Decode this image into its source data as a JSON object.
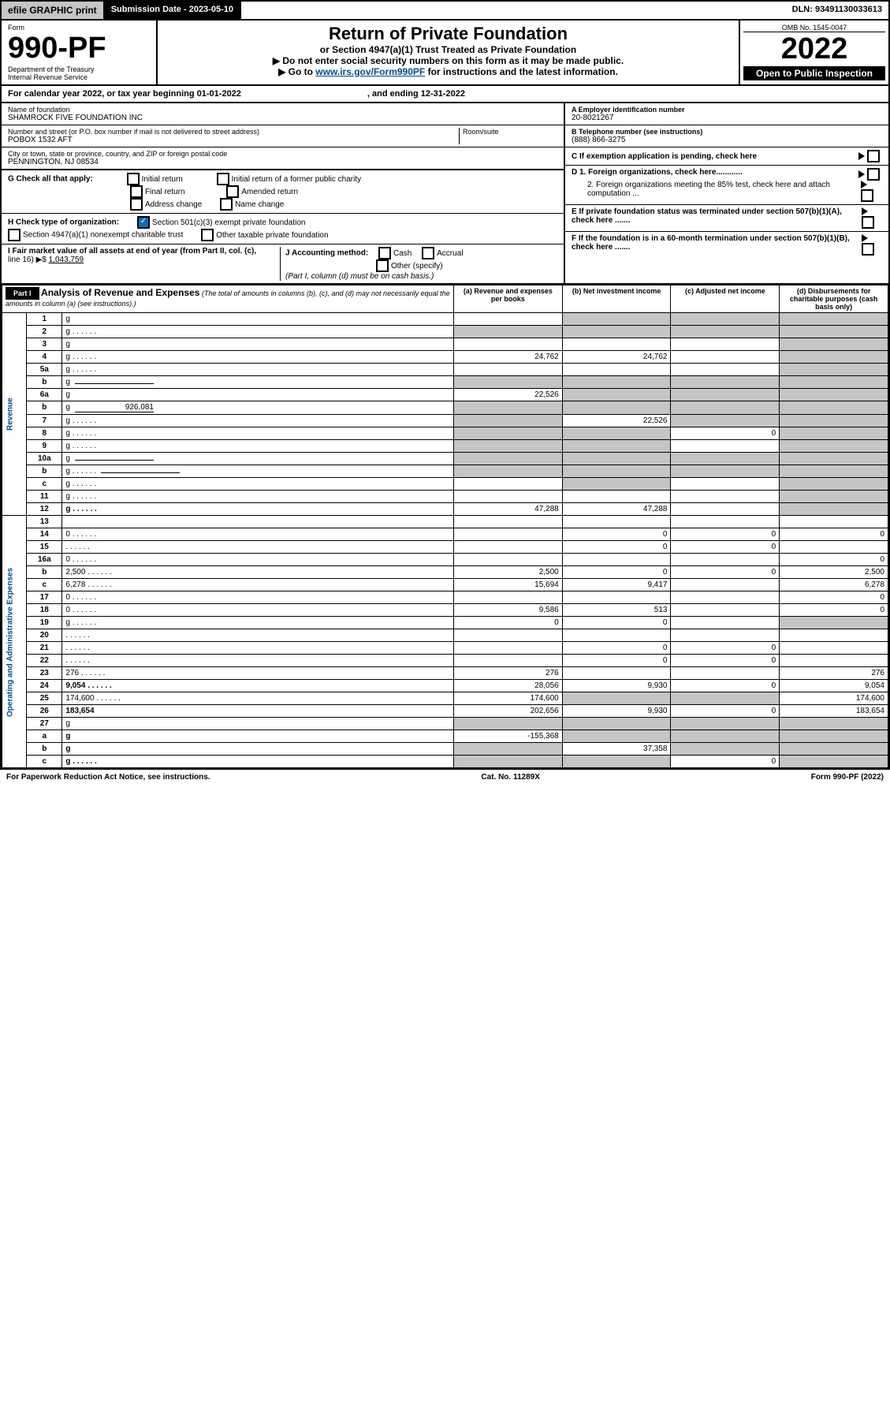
{
  "topbar": {
    "efile": "efile GRAPHIC print",
    "subdate_label": "Submission Date - 2023-05-10",
    "dln": "DLN: 93491130033613"
  },
  "header": {
    "form_label": "Form",
    "form_no": "990-PF",
    "dept": "Department of the Treasury",
    "irs": "Internal Revenue Service",
    "title": "Return of Private Foundation",
    "subtitle": "or Section 4947(a)(1) Trust Treated as Private Foundation",
    "note1": "▶ Do not enter social security numbers on this form as it may be made public.",
    "note2_a": "▶ Go to ",
    "note2_link": "www.irs.gov/Form990PF",
    "note2_b": " for instructions and the latest information.",
    "omb": "OMB No. 1545-0047",
    "year": "2022",
    "open": "Open to Public Inspection"
  },
  "cal": {
    "text_a": "For calendar year 2022, or tax year beginning 01-01-2022",
    "text_b": ", and ending 12-31-2022"
  },
  "info": {
    "name_label": "Name of foundation",
    "name": "SHAMROCK FIVE FOUNDATION INC",
    "addr_label": "Number and street (or P.O. box number if mail is not delivered to street address)",
    "room": "Room/suite",
    "addr": "POBOX 1532 AFT",
    "city_label": "City or town, state or province, country, and ZIP or foreign postal code",
    "city": "PENNINGTON, NJ  08534",
    "ein_label": "A Employer identification number",
    "ein": "20-8021267",
    "tel_label": "B Telephone number (see instructions)",
    "tel": "(888) 866-3275",
    "c_label": "C If exemption application is pending, check here",
    "d1": "D 1. Foreign organizations, check here............",
    "d2": "2. Foreign organizations meeting the 85% test, check here and attach computation ...",
    "e": "E If private foundation status was terminated under section 507(b)(1)(A), check here .......",
    "f": "F If the foundation is in a 60-month termination under section 507(b)(1)(B), check here ......."
  },
  "checks": {
    "g_label": "G Check all that apply:",
    "g1": "Initial return",
    "g2": "Initial return of a former public charity",
    "g3": "Final return",
    "g4": "Amended return",
    "g5": "Address change",
    "g6": "Name change",
    "h_label": "H Check type of organization:",
    "h1": "Section 501(c)(3) exempt private foundation",
    "h2": "Section 4947(a)(1) nonexempt charitable trust",
    "h3": "Other taxable private foundation",
    "i_label": "I Fair market value of all assets at end of year (from Part II, col. (c),",
    "i_line": "line 16) ▶$ ",
    "i_val": "1,043,759",
    "j_label": "J Accounting method:",
    "j1": "Cash",
    "j2": "Accrual",
    "j3": "Other (specify)",
    "j_note": "(Part I, column (d) must be on cash basis.)"
  },
  "part1": {
    "label": "Part I",
    "title": "Analysis of Revenue and Expenses",
    "note": "(The total of amounts in columns (b), (c), and (d) may not necessarily equal the amounts in column (a) (see instructions).)",
    "col_a": "(a)",
    "col_a_t": "Revenue and expenses per books",
    "col_b": "(b)",
    "col_b_t": "Net investment income",
    "col_c": "(c)",
    "col_c_t": "Adjusted net income",
    "col_d": "(d)",
    "col_d_t": "Disbursements for charitable purposes (cash basis only)"
  },
  "side": {
    "rev": "Revenue",
    "exp": "Operating and Administrative Expenses"
  },
  "lines": [
    {
      "n": "1",
      "d": "g",
      "a": "",
      "b": "g",
      "c": "g"
    },
    {
      "n": "2",
      "d": "g",
      "a": "g",
      "b": "g",
      "c": "g",
      "dots": 1
    },
    {
      "n": "3",
      "d": "g",
      "a": "",
      "b": "",
      "c": ""
    },
    {
      "n": "4",
      "d": "g",
      "a": "24,762",
      "b": "24,762",
      "c": "",
      "dots": 1
    },
    {
      "n": "5a",
      "d": "g",
      "a": "",
      "b": "",
      "c": "",
      "dots": 1
    },
    {
      "n": "b",
      "d": "g",
      "a": "g",
      "b": "g",
      "c": "g",
      "input": 1
    },
    {
      "n": "6a",
      "d": "g",
      "a": "22,526",
      "b": "g",
      "c": "g"
    },
    {
      "n": "b",
      "d": "g",
      "iv": "926,081",
      "a": "g",
      "b": "g",
      "c": "g",
      "input": 1
    },
    {
      "n": "7",
      "d": "g",
      "a": "g",
      "b": "22,526",
      "c": "g",
      "dots": 1
    },
    {
      "n": "8",
      "d": "g",
      "a": "g",
      "b": "g",
      "c": "0",
      "dots": 1
    },
    {
      "n": "9",
      "d": "g",
      "a": "g",
      "b": "g",
      "c": "",
      "dots": 1
    },
    {
      "n": "10a",
      "d": "g",
      "a": "g",
      "b": "g",
      "c": "g",
      "input": 1
    },
    {
      "n": "b",
      "d": "g",
      "a": "g",
      "b": "g",
      "c": "g",
      "dots": 1,
      "input": 1
    },
    {
      "n": "c",
      "d": "g",
      "a": "",
      "b": "g",
      "c": "",
      "dots": 1
    },
    {
      "n": "11",
      "d": "g",
      "a": "",
      "b": "",
      "c": "",
      "dots": 1
    },
    {
      "n": "12",
      "d": "g",
      "a": "47,288",
      "b": "47,288",
      "c": "",
      "dots": 1,
      "bold": 1
    },
    {
      "n": "13",
      "d": "",
      "a": "",
      "b": "",
      "c": ""
    },
    {
      "n": "14",
      "d": "0",
      "a": "",
      "b": "0",
      "c": "0",
      "dots": 1
    },
    {
      "n": "15",
      "d": "",
      "a": "",
      "b": "0",
      "c": "0",
      "dots": 1
    },
    {
      "n": "16a",
      "d": "0",
      "a": "",
      "b": "",
      "c": "",
      "dots": 1
    },
    {
      "n": "b",
      "d": "2,500",
      "a": "2,500",
      "b": "0",
      "c": "0",
      "dots": 1
    },
    {
      "n": "c",
      "d": "6,278",
      "a": "15,694",
      "b": "9,417",
      "c": "",
      "dots": 1
    },
    {
      "n": "17",
      "d": "0",
      "a": "",
      "b": "",
      "c": "",
      "dots": 1
    },
    {
      "n": "18",
      "d": "0",
      "a": "9,586",
      "b": "513",
      "c": "",
      "dots": 1
    },
    {
      "n": "19",
      "d": "g",
      "a": "0",
      "b": "0",
      "c": "",
      "dots": 1
    },
    {
      "n": "20",
      "d": "",
      "a": "",
      "b": "",
      "c": "",
      "dots": 1
    },
    {
      "n": "21",
      "d": "",
      "a": "",
      "b": "0",
      "c": "0",
      "dots": 1
    },
    {
      "n": "22",
      "d": "",
      "a": "",
      "b": "0",
      "c": "0",
      "dots": 1
    },
    {
      "n": "23",
      "d": "276",
      "a": "276",
      "b": "",
      "c": "",
      "dots": 1
    },
    {
      "n": "24",
      "d": "9,054",
      "a": "28,056",
      "b": "9,930",
      "c": "0",
      "dots": 1,
      "bold": 1
    },
    {
      "n": "25",
      "d": "174,600",
      "a": "174,600",
      "b": "g",
      "c": "g",
      "dots": 1
    },
    {
      "n": "26",
      "d": "183,654",
      "a": "202,656",
      "b": "9,930",
      "c": "0",
      "bold": 1
    },
    {
      "n": "27",
      "d": "g",
      "a": "g",
      "b": "g",
      "c": "g"
    },
    {
      "n": "a",
      "d": "g",
      "a": "-155,368",
      "b": "g",
      "c": "g",
      "bold": 1
    },
    {
      "n": "b",
      "d": "g",
      "a": "g",
      "b": "37,358",
      "c": "g",
      "bold": 1
    },
    {
      "n": "c",
      "d": "g",
      "a": "g",
      "b": "g",
      "c": "0",
      "bold": 1,
      "dots": 1
    }
  ],
  "footer": {
    "left": "For Paperwork Reduction Act Notice, see instructions.",
    "mid": "Cat. No. 11289X",
    "right": "Form 990-PF (2022)"
  }
}
